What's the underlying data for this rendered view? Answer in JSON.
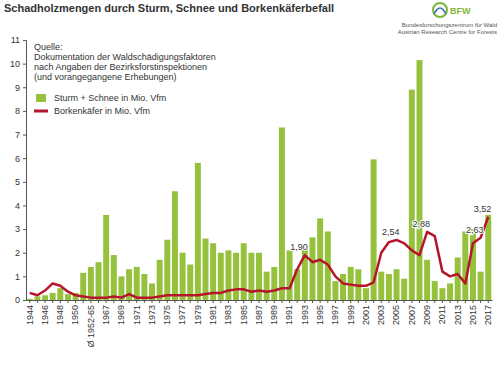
{
  "chart_data": {
    "type": "bar",
    "title": "Schadholzmengen durch Sturm, Schnee und Borkenkäferbefall",
    "source": [
      "Quelle:",
      "Dokumentation der Waldschädigungsfaktoren",
      "nach Angaben der Bezirksforstinspektionen",
      "(und vorangegangene Erhebungen)"
    ],
    "logo": [
      "BFW",
      "Bundesforschungszentrum für Wald",
      "Austrian Research Centre for Forests"
    ],
    "categories": [
      "1944",
      null,
      "1946",
      null,
      "1948",
      null,
      "1950",
      null,
      "Ø 1952-65",
      null,
      "1967",
      null,
      "1969",
      null,
      "1971",
      null,
      "1973",
      null,
      "1975",
      null,
      "1977",
      null,
      "1979",
      null,
      "1981",
      null,
      "1983",
      null,
      "1985",
      null,
      "1987",
      null,
      "1989",
      null,
      "1991",
      null,
      "1993",
      null,
      "1995",
      null,
      "1997",
      null,
      "1999",
      null,
      "2001",
      null,
      "2003",
      null,
      "2005",
      null,
      "2007",
      null,
      "2009",
      null,
      "2011",
      null,
      "2013",
      null,
      "2015",
      null,
      "2017"
    ],
    "series": [
      {
        "name": "Sturm + Schnee in Mio. Vfm",
        "type": "bar",
        "color": "#95c13d",
        "values": [
          0.05,
          0.15,
          0.2,
          0.3,
          0.5,
          0.25,
          0.3,
          1.15,
          1.4,
          1.6,
          3.6,
          1.9,
          1.0,
          1.3,
          1.4,
          1.1,
          0.7,
          1.7,
          2.55,
          4.6,
          2.0,
          1.5,
          5.8,
          2.6,
          2.4,
          2.0,
          2.1,
          2.0,
          2.4,
          2.0,
          2.0,
          1.2,
          1.4,
          7.3,
          2.1,
          1.3,
          2.2,
          2.65,
          3.45,
          2.9,
          0.8,
          1.1,
          1.4,
          1.3,
          0.5,
          5.95,
          1.2,
          1.1,
          1.3,
          0.9,
          8.9,
          10.15,
          1.7,
          0.8,
          0.5,
          0.7,
          1.8,
          2.9,
          3.0,
          1.2,
          3.6
        ]
      },
      {
        "name": "Borkenkäfer in Mio. Vfm",
        "type": "line",
        "color": "#b5162b",
        "data_labels": true,
        "values": [
          0.3,
          0.2,
          0.4,
          0.7,
          0.6,
          0.35,
          0.2,
          0.15,
          0.1,
          0.1,
          0.1,
          0.15,
          0.1,
          0.25,
          0.1,
          0.1,
          0.1,
          0.15,
          0.2,
          0.2,
          0.2,
          0.2,
          0.2,
          0.25,
          0.3,
          0.3,
          0.4,
          0.45,
          0.45,
          0.35,
          0.4,
          0.35,
          0.4,
          0.5,
          0.5,
          1.3,
          1.9,
          1.6,
          1.7,
          1.5,
          1.0,
          0.7,
          0.65,
          0.6,
          0.6,
          0.75,
          2.0,
          2.45,
          2.54,
          2.4,
          2.1,
          1.9,
          2.88,
          2.7,
          1.2,
          1.0,
          1.1,
          0.7,
          2.4,
          2.63,
          3.52
        ],
        "value_labels": [
          null,
          null,
          null,
          null,
          null,
          null,
          null,
          null,
          null,
          null,
          null,
          null,
          null,
          null,
          null,
          null,
          null,
          null,
          null,
          null,
          null,
          null,
          null,
          null,
          null,
          null,
          null,
          null,
          null,
          null,
          null,
          null,
          null,
          null,
          null,
          null,
          "1,90",
          null,
          null,
          null,
          null,
          null,
          null,
          null,
          null,
          null,
          null,
          null,
          "2,54",
          null,
          null,
          null,
          "2,88",
          null,
          null,
          null,
          null,
          null,
          null,
          "2,63",
          "3,52"
        ]
      }
    ],
    "ylim": [
      0,
      11
    ],
    "yticks": [
      0,
      1,
      2,
      3,
      4,
      5,
      6,
      7,
      8,
      9,
      10,
      11
    ],
    "grid": false,
    "legend": "top-left"
  }
}
